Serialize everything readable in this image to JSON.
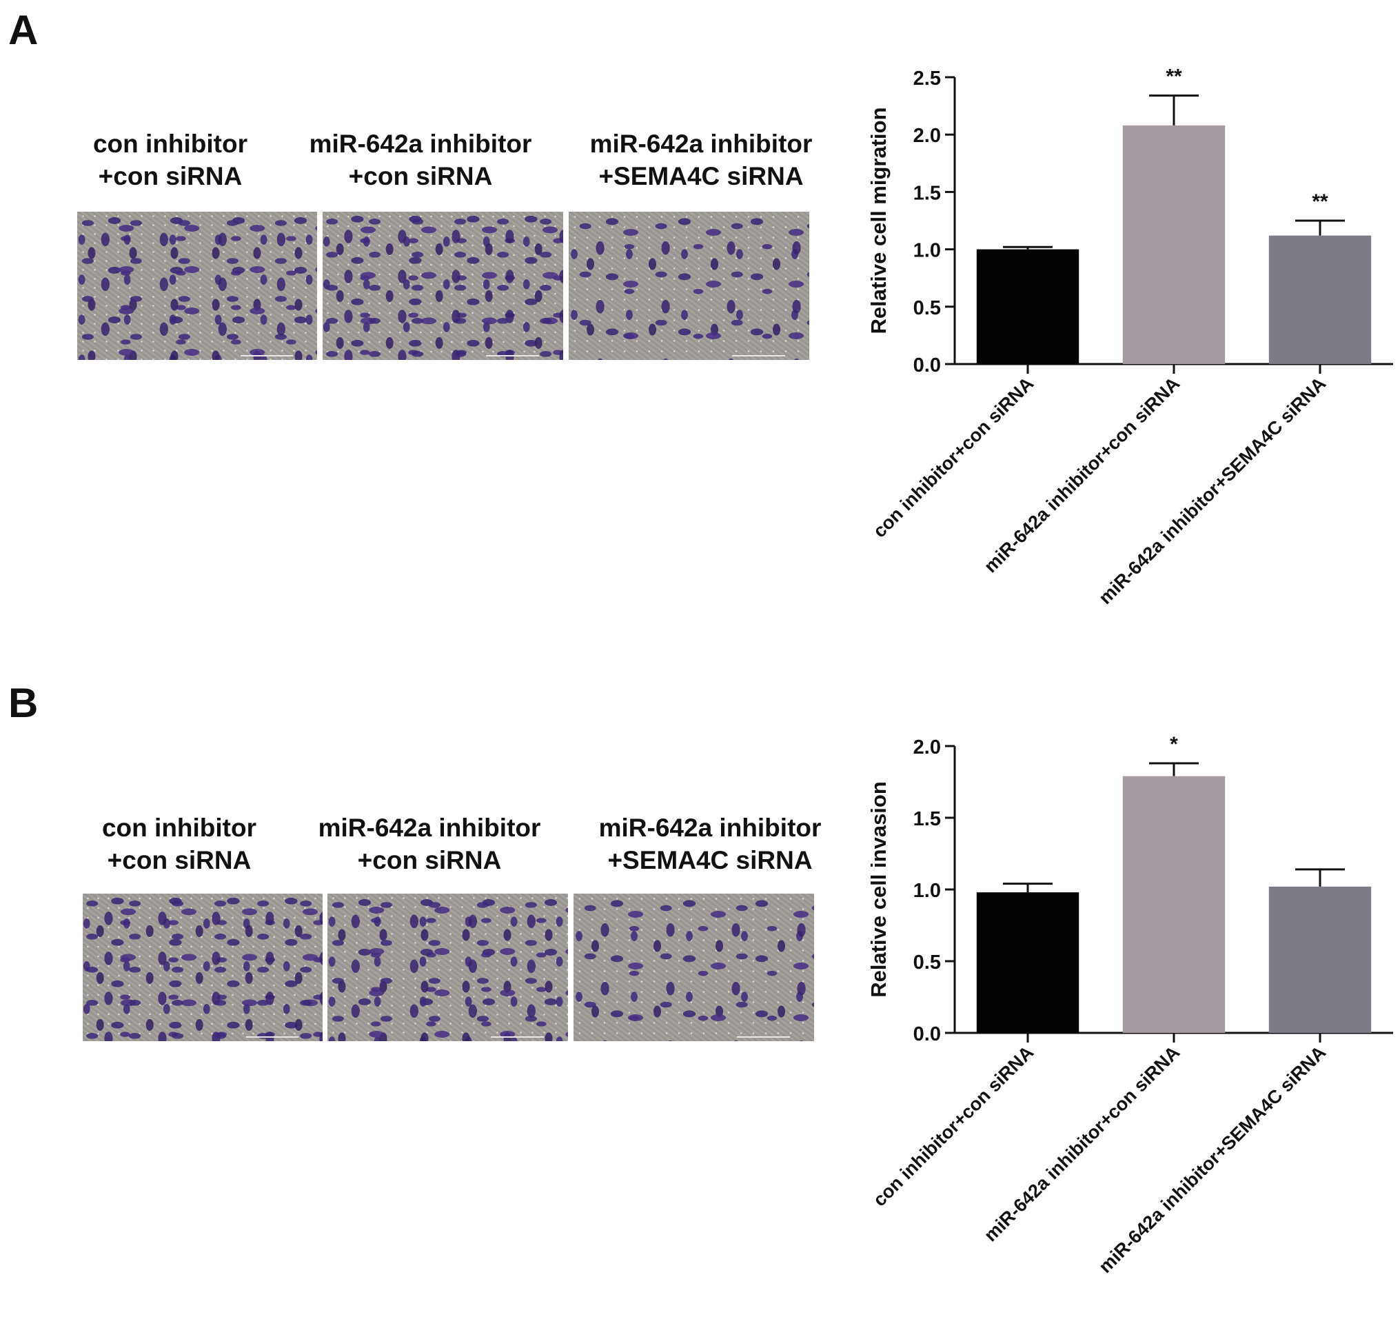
{
  "panels": [
    {
      "letter": "A",
      "captions": [
        [
          "con inhibitor",
          "+con siRNA"
        ],
        [
          "miR-642a inhibitor",
          "+con siRNA"
        ],
        [
          "miR-642a inhibitor",
          "+SEMA4C siRNA"
        ]
      ]
    },
    {
      "letter": "B",
      "captions": [
        [
          "con inhibitor",
          "+con siRNA"
        ],
        [
          "miR-642a inhibitor",
          "+con siRNA"
        ],
        [
          "miR-642a inhibitor",
          "+SEMA4C siRNA"
        ]
      ]
    }
  ],
  "chart_data": [
    {
      "type": "bar",
      "ylabel": "Relative cell migration",
      "ylim": [
        0,
        2.5
      ],
      "yticks": [
        "0.0",
        "0.5",
        "1.0",
        "1.5",
        "2.0",
        "2.5"
      ],
      "categories": [
        "con inhibitor+con siRNA",
        "miR-642a inhibitor+con siRNA",
        "miR-642a inhibitor+SEMA4C siRNA"
      ],
      "values": [
        1.0,
        2.08,
        1.12
      ],
      "errors": [
        0.02,
        0.26,
        0.13
      ],
      "significance": [
        "",
        "**",
        "**"
      ],
      "colors": [
        "#030303",
        "#a49aa3",
        "#7d7b86"
      ]
    },
    {
      "type": "bar",
      "ylabel": "Relative cell invasion",
      "ylim": [
        0,
        2.0
      ],
      "yticks": [
        "0.0",
        "0.5",
        "1.0",
        "1.5",
        "2.0"
      ],
      "categories": [
        "con inhibitor+con siRNA",
        "miR-642a inhibitor+con siRNA",
        "miR-642a inhibitor+SEMA4C siRNA"
      ],
      "values": [
        0.98,
        1.79,
        1.02
      ],
      "errors": [
        0.06,
        0.09,
        0.12
      ],
      "significance": [
        "",
        "*",
        ""
      ],
      "colors": [
        "#030303",
        "#a49aa3",
        "#7d7b86"
      ]
    }
  ]
}
